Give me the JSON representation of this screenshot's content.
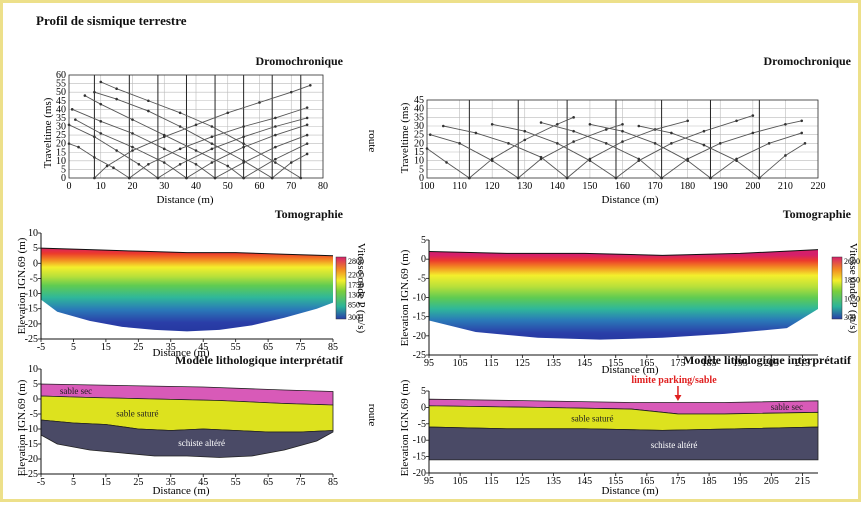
{
  "page_title": "Profil de sismique terrestre",
  "side_note": "route",
  "colorbar_label": "Vitesse onde P (m/s)",
  "colors": {
    "frame": "#ede08a",
    "ray_lines": "#555555",
    "sable_sec": "#d85ab8",
    "sable_sature": "#dde21e",
    "schiste_altere": "#4a4a66",
    "annotation": "#e02020"
  },
  "chart_data": [
    {
      "id": "dromo_left",
      "type": "line",
      "title": "Dromochronique",
      "xlabel": "Distance (m)",
      "ylabel": "Traveltime (ms)",
      "xlim": [
        0,
        80
      ],
      "ylim": [
        0,
        60
      ],
      "xticks": [
        0,
        10,
        20,
        30,
        40,
        50,
        60,
        70,
        80
      ],
      "yticks": [
        0,
        5,
        10,
        15,
        20,
        25,
        30,
        35,
        40,
        45,
        50,
        55,
        60
      ],
      "grid": true,
      "shots": [
        8,
        19,
        28,
        37,
        46,
        55,
        64,
        73
      ],
      "series": [
        {
          "x": [
            8,
            12,
            20,
            30,
            40,
            50,
            60,
            70,
            76
          ],
          "y": [
            0,
            7,
            16,
            24,
            31,
            38,
            44,
            50,
            54
          ]
        },
        {
          "x": [
            19,
            14,
            8,
            3,
            0
          ],
          "y": [
            0,
            6,
            12,
            18,
            20
          ]
        },
        {
          "x": [
            19,
            25,
            35,
            45,
            55,
            65,
            75
          ],
          "y": [
            0,
            8,
            17,
            24,
            30,
            35,
            41
          ]
        },
        {
          "x": [
            28,
            22,
            15,
            8,
            0
          ],
          "y": [
            0,
            8,
            16,
            24,
            31
          ]
        },
        {
          "x": [
            28,
            35,
            45,
            55,
            65,
            75
          ],
          "y": [
            0,
            8,
            17,
            24,
            30,
            35
          ]
        },
        {
          "x": [
            37,
            30,
            20,
            10,
            2
          ],
          "y": [
            0,
            9,
            18,
            26,
            34
          ]
        },
        {
          "x": [
            37,
            45,
            55,
            65,
            75
          ],
          "y": [
            0,
            9,
            18,
            25,
            31
          ]
        },
        {
          "x": [
            46,
            40,
            30,
            20,
            10,
            1
          ],
          "y": [
            0,
            8,
            17,
            26,
            33,
            40
          ]
        },
        {
          "x": [
            46,
            55,
            65,
            75
          ],
          "y": [
            0,
            9,
            18,
            25
          ]
        },
        {
          "x": [
            55,
            50,
            40,
            30,
            20,
            10,
            5
          ],
          "y": [
            0,
            7,
            16,
            25,
            34,
            43,
            48
          ]
        },
        {
          "x": [
            55,
            65,
            75
          ],
          "y": [
            0,
            11,
            20
          ]
        },
        {
          "x": [
            64,
            55,
            45,
            35,
            25,
            15,
            8
          ],
          "y": [
            0,
            10,
            20,
            30,
            39,
            46,
            50
          ]
        },
        {
          "x": [
            64,
            70,
            75
          ],
          "y": [
            0,
            9,
            14
          ]
        },
        {
          "x": [
            73,
            65,
            55,
            45,
            35,
            25,
            15,
            10
          ],
          "y": [
            0,
            9,
            20,
            30,
            38,
            45,
            52,
            56
          ]
        }
      ]
    },
    {
      "id": "dromo_right",
      "type": "line",
      "title": "Dromochronique",
      "xlabel": "Distance (m)",
      "ylabel": "Traveltime (ms)",
      "xlim": [
        100,
        220
      ],
      "ylim": [
        0,
        45
      ],
      "xticks": [
        100,
        110,
        120,
        130,
        140,
        150,
        160,
        170,
        180,
        190,
        200,
        210,
        220
      ],
      "yticks": [
        0,
        5,
        10,
        15,
        20,
        25,
        30,
        35,
        40,
        45
      ],
      "grid": true,
      "shots": [
        113,
        128,
        143,
        158,
        172,
        187,
        202
      ],
      "series": [
        {
          "x": [
            100,
            106,
            113
          ],
          "y": [
            17,
            9,
            0
          ]
        },
        {
          "x": [
            113,
            120,
            130,
            140,
            145
          ],
          "y": [
            0,
            11,
            22,
            31,
            35
          ]
        },
        {
          "x": [
            128,
            120,
            110,
            101
          ],
          "y": [
            0,
            10,
            20,
            25
          ]
        },
        {
          "x": [
            128,
            135,
            145,
            155,
            160
          ],
          "y": [
            0,
            11,
            21,
            28,
            31
          ]
        },
        {
          "x": [
            143,
            135,
            125,
            115,
            105
          ],
          "y": [
            0,
            12,
            20,
            26,
            30
          ]
        },
        {
          "x": [
            143,
            150,
            160,
            170,
            180
          ],
          "y": [
            0,
            11,
            21,
            28,
            33
          ]
        },
        {
          "x": [
            158,
            150,
            140,
            130,
            120
          ],
          "y": [
            0,
            10,
            20,
            27,
            31
          ]
        },
        {
          "x": [
            158,
            165,
            175,
            185,
            195,
            200
          ],
          "y": [
            0,
            10,
            20,
            27,
            33,
            36
          ]
        },
        {
          "x": [
            172,
            165,
            155,
            145,
            135
          ],
          "y": [
            0,
            11,
            20,
            27,
            32
          ]
        },
        {
          "x": [
            172,
            180,
            190,
            200,
            210,
            215
          ],
          "y": [
            0,
            11,
            20,
            26,
            31,
            33
          ]
        },
        {
          "x": [
            187,
            180,
            170,
            160,
            150
          ],
          "y": [
            0,
            10,
            20,
            27,
            31
          ]
        },
        {
          "x": [
            187,
            195,
            205,
            215
          ],
          "y": [
            0,
            11,
            20,
            26
          ]
        },
        {
          "x": [
            202,
            195,
            185,
            175,
            165
          ],
          "y": [
            0,
            10,
            19,
            26,
            30
          ]
        },
        {
          "x": [
            202,
            210,
            216
          ],
          "y": [
            0,
            13,
            20
          ]
        }
      ]
    },
    {
      "id": "tomo_left",
      "type": "heatmap",
      "title": "Tomographie",
      "xlabel": "Distance (m)",
      "ylabel": "Elevation IGN.69 (m)",
      "xlim": [
        -5,
        85
      ],
      "ylim": [
        -25,
        10
      ],
      "xticks": [
        -5,
        5,
        15,
        25,
        35,
        45,
        55,
        65,
        75,
        85
      ],
      "yticks": [
        -25,
        -20,
        -15,
        -10,
        -5,
        0,
        5,
        10
      ],
      "colorbar_ticks": [
        300,
        850,
        1300,
        1750,
        2200,
        2800
      ],
      "surface": {
        "x": [
          -5,
          10,
          25,
          40,
          55,
          70,
          85
        ],
        "y": [
          5,
          4.5,
          4,
          3.5,
          3.5,
          3,
          2.5
        ]
      },
      "base": {
        "x": [
          -5,
          0,
          10,
          20,
          30,
          40,
          50,
          60,
          70,
          80,
          85
        ],
        "y": [
          -12,
          -16,
          -19,
          -21,
          -22,
          -22.5,
          -22,
          -20.5,
          -18,
          -15,
          -13
        ]
      }
    },
    {
      "id": "tomo_right",
      "type": "heatmap",
      "title": "Tomographie",
      "xlabel": "Distance (m)",
      "ylabel": "Elevation IGN.69 (m)",
      "xlim": [
        95,
        220
      ],
      "ylim": [
        -25,
        5
      ],
      "xticks": [
        95,
        105,
        115,
        125,
        135,
        145,
        155,
        165,
        175,
        185,
        195,
        205,
        215
      ],
      "yticks": [
        -25,
        -20,
        -15,
        -10,
        -5,
        0,
        5
      ],
      "colorbar_ticks": [
        300,
        1050,
        1850,
        2600
      ],
      "surface": {
        "x": [
          95,
          120,
          145,
          170,
          195,
          220
        ],
        "y": [
          2,
          1.5,
          1.5,
          1,
          1.5,
          2.5
        ]
      },
      "base": {
        "x": [
          95,
          110,
          130,
          150,
          170,
          190,
          210,
          220
        ],
        "y": [
          -16,
          -19,
          -20.5,
          -21,
          -20.5,
          -19.5,
          -18,
          -13
        ]
      }
    },
    {
      "id": "litho_left",
      "type": "area",
      "title": "Modèle lithologique interprétatif",
      "xlabel": "Distance (m)",
      "ylabel": "Elevation IGN.69 (m)",
      "xlim": [
        -5,
        85
      ],
      "ylim": [
        -25,
        10
      ],
      "xticks": [
        -5,
        5,
        15,
        25,
        35,
        45,
        55,
        65,
        75,
        85
      ],
      "yticks": [
        -25,
        -20,
        -15,
        -10,
        -5,
        0,
        5,
        10
      ],
      "layers": [
        {
          "name": "sable sec",
          "color": "#d85ab8",
          "top": {
            "x": [
              -5,
              20,
              45,
              70,
              85
            ],
            "y": [
              5,
              4.5,
              4,
              3,
              2.5
            ]
          },
          "bottom": {
            "x": [
              -5,
              10,
              30,
              50,
              70,
              85
            ],
            "y": [
              1,
              0.5,
              0,
              -0.5,
              -1.5,
              -2
            ]
          }
        },
        {
          "name": "sable saturé",
          "color": "#dde21e",
          "top": {
            "x": [
              -5,
              10,
              30,
              50,
              70,
              85
            ],
            "y": [
              1,
              0.5,
              0,
              -0.5,
              -1.5,
              -2
            ]
          },
          "bottom": {
            "x": [
              -5,
              5,
              15,
              25,
              35,
              45,
              55,
              65,
              75,
              85
            ],
            "y": [
              -7,
              -8,
              -8.5,
              -10,
              -10.5,
              -10,
              -10.5,
              -11,
              -11,
              -10.5
            ]
          }
        },
        {
          "name": "schiste altéré",
          "color": "#4a4a66",
          "top": {
            "x": [
              -5,
              5,
              15,
              25,
              35,
              45,
              55,
              65,
              75,
              85
            ],
            "y": [
              -7,
              -8,
              -8.5,
              -10,
              -10.5,
              -10,
              -10.5,
              -11,
              -11,
              -10.5
            ]
          },
          "bottom": {
            "x": [
              -5,
              0,
              10,
              20,
              30,
              40,
              50,
              60,
              70,
              80,
              85
            ],
            "y": [
              -12,
              -15,
              -17,
              -18,
              -19,
              -19,
              -19.5,
              -19,
              -17,
              -14,
              -11
            ]
          }
        }
      ]
    },
    {
      "id": "litho_right",
      "type": "area",
      "title": "Modèle lithologique interprétatif",
      "xlabel": "Distance (m)",
      "ylabel": "Elevation IGN.69 (m)",
      "xlim": [
        95,
        220
      ],
      "ylim": [
        -20,
        5
      ],
      "xticks": [
        95,
        105,
        115,
        125,
        135,
        145,
        155,
        165,
        175,
        185,
        195,
        205,
        215
      ],
      "yticks": [
        -20,
        -15,
        -10,
        -5,
        0,
        5
      ],
      "annotation": {
        "text": "limite parking/sable",
        "x": 175
      },
      "layers": [
        {
          "name": "sable sec",
          "color": "#d85ab8",
          "top": {
            "x": [
              95,
              130,
              160,
              190,
              220
            ],
            "y": [
              2.5,
              2,
              1.5,
              1.5,
              2
            ]
          },
          "bottom": {
            "x": [
              95,
              130,
              160,
              175,
              190,
              220
            ],
            "y": [
              0.5,
              0,
              -0.5,
              -2,
              -2,
              -1.5
            ]
          }
        },
        {
          "name": "sable saturé",
          "color": "#dde21e",
          "top": {
            "x": [
              95,
              130,
              160,
              175,
              190,
              220
            ],
            "y": [
              0.5,
              0,
              -0.5,
              -2,
              -2,
              -1.5
            ]
          },
          "bottom": {
            "x": [
              95,
              120,
              145,
              170,
              195,
              220
            ],
            "y": [
              -6,
              -6.5,
              -6.5,
              -7,
              -6.5,
              -6
            ]
          }
        },
        {
          "name": "schiste altéré",
          "color": "#4a4a66",
          "top": {
            "x": [
              95,
              120,
              145,
              170,
              195,
              220
            ],
            "y": [
              -6,
              -6.5,
              -6.5,
              -7,
              -6.5,
              -6
            ]
          },
          "bottom": {
            "x": [
              95,
              220
            ],
            "y": [
              -16,
              -16
            ]
          }
        }
      ]
    }
  ]
}
